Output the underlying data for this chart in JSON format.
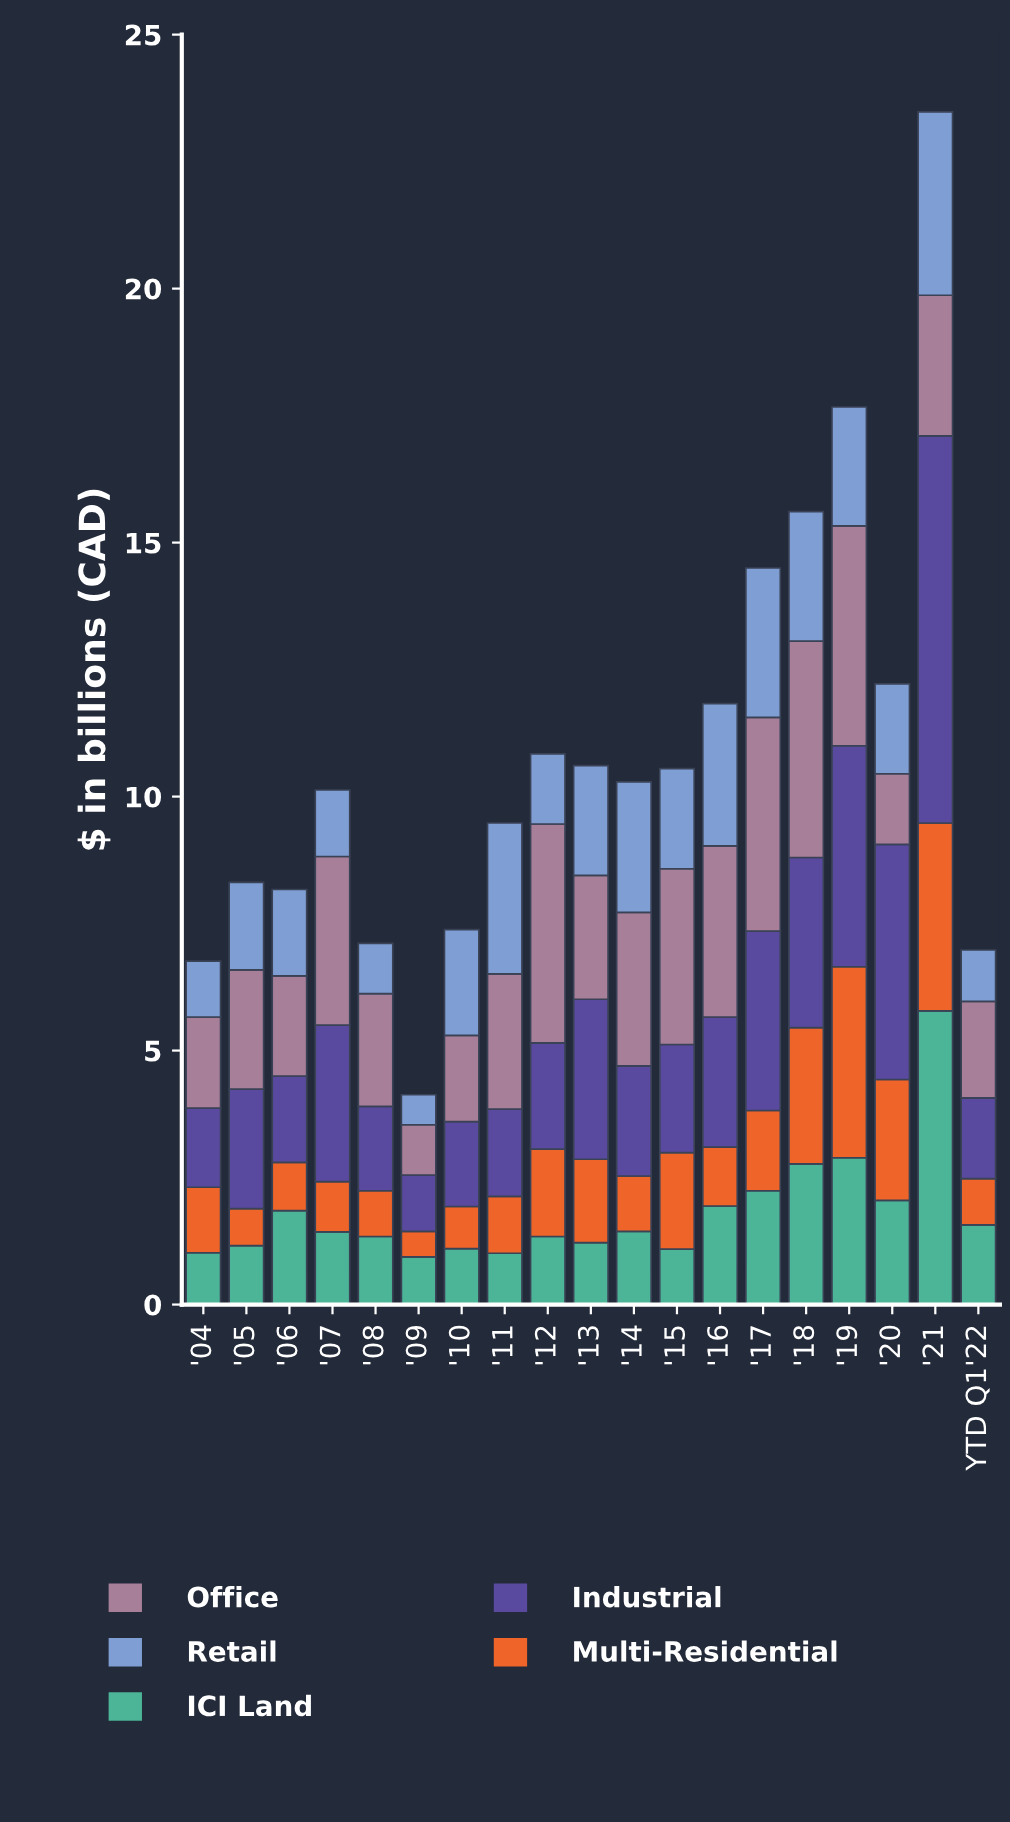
{
  "chart_data": {
    "type": "bar",
    "stacked": true,
    "ylabel": "$ in billions (CAD)",
    "categories": [
      "'04",
      "'05",
      "'06",
      "'07",
      "'08",
      "'09",
      "'10",
      "'11",
      "'12",
      "'13",
      "'14",
      "'15",
      "'16",
      "'17",
      "'18",
      "'19",
      "'20",
      "'21",
      "YTD Q1'22"
    ],
    "series": [
      {
        "name": "ICI Land",
        "color": "#4db597",
        "values": [
          1.02,
          1.16,
          1.85,
          1.43,
          1.34,
          0.94,
          1.1,
          1.01,
          1.34,
          1.22,
          1.44,
          1.09,
          1.94,
          2.24,
          2.77,
          2.89,
          2.05,
          5.78,
          1.57
        ]
      },
      {
        "name": "Multi-Residential",
        "color": "#ef6428",
        "values": [
          1.29,
          0.73,
          0.95,
          0.99,
          0.9,
          0.5,
          0.83,
          1.12,
          1.72,
          1.64,
          1.09,
          1.9,
          1.16,
          1.58,
          2.68,
          3.76,
          2.38,
          3.7,
          0.91
        ]
      },
      {
        "name": "Industrial",
        "color": "#5a4a9f",
        "values": [
          1.56,
          2.35,
          1.7,
          3.08,
          1.66,
          1.11,
          1.67,
          1.72,
          2.09,
          3.15,
          2.17,
          2.13,
          2.56,
          3.53,
          3.35,
          4.35,
          4.63,
          7.62,
          1.59
        ]
      },
      {
        "name": "Office",
        "color": "#a87f99",
        "values": [
          1.79,
          2.35,
          1.97,
          3.32,
          2.22,
          0.99,
          1.7,
          2.66,
          4.31,
          2.44,
          3.02,
          3.46,
          3.37,
          4.21,
          4.26,
          4.33,
          1.39,
          2.77,
          1.9
        ]
      },
      {
        "name": "Retail",
        "color": "#7f9fd4",
        "values": [
          1.1,
          1.72,
          1.7,
          1.31,
          0.99,
          0.59,
          2.08,
          2.97,
          1.38,
          2.16,
          2.57,
          1.97,
          2.8,
          2.94,
          2.55,
          2.34,
          1.77,
          3.61,
          1.01
        ]
      }
    ],
    "ylim": [
      0,
      25
    ],
    "yticks": [
      0,
      5,
      10,
      15,
      20,
      25
    ],
    "grid": false,
    "legend": "bottom"
  }
}
